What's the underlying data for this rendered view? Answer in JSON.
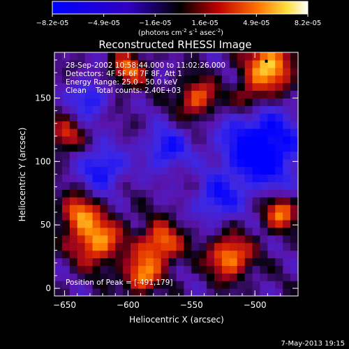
{
  "colorbar": {
    "ticks": [
      "-8.2e-05",
      "-4.9e-05",
      "-1.6e-05",
      "1.6e-05",
      "4.9e-05",
      "8.2e-05"
    ],
    "tick_values": [
      -8.2e-05,
      -4.9e-05,
      -1.6e-05,
      1.6e-05,
      4.9e-05,
      8.2e-05
    ],
    "range": [
      -8.2e-05,
      8.2e-05
    ],
    "unit_base": "(photons cm",
    "unit_exp1": "-2",
    "unit_mid": " s",
    "unit_exp2": "-1",
    "unit_mid2": " asec",
    "unit_exp3": "-2",
    "unit_end": ")"
  },
  "chart_data": {
    "type": "heatmap",
    "title": "Reconstructed RHESSI Image",
    "xlabel": "Heliocentric X (arcsec)",
    "ylabel": "Heliocentric Y (arcsec)",
    "xlim": [
      -658,
      -466
    ],
    "ylim": [
      -6,
      186
    ],
    "x_ticks": [
      -650,
      -600,
      -550,
      -500
    ],
    "y_ticks": [
      0,
      50,
      100,
      150
    ],
    "annotations": [
      "28-Sep-2002 10:58:44.000 to 11:02:26.000",
      "Detectors: 4F 5F 6F 7F 8F, Att 1",
      "Energy Range: 25.0 - 50.0 keV",
      "Clean    Total counts: 2.40E+03"
    ],
    "peak_label": "Position of Peak = [-491,179]",
    "peak": [
      -491,
      179
    ],
    "bright_sources": [
      {
        "x": -488,
        "y": 175,
        "v": 1.0,
        "r": 14
      },
      {
        "x": -600,
        "y": 172,
        "v": 0.7,
        "r": 10
      },
      {
        "x": -545,
        "y": 150,
        "v": 0.75,
        "r": 11
      },
      {
        "x": -625,
        "y": 38,
        "v": 0.9,
        "r": 14
      },
      {
        "x": -575,
        "y": 35,
        "v": 0.85,
        "r": 12
      },
      {
        "x": -520,
        "y": 25,
        "v": 0.9,
        "r": 12
      },
      {
        "x": -590,
        "y": 10,
        "v": 0.8,
        "r": 10
      },
      {
        "x": -480,
        "y": 60,
        "v": 0.8,
        "r": 10
      },
      {
        "x": -650,
        "y": 120,
        "v": 0.6,
        "r": 9
      },
      {
        "x": -505,
        "y": 150,
        "v": 0.55,
        "r": 9
      },
      {
        "x": -640,
        "y": 60,
        "v": 0.7,
        "r": 10
      }
    ],
    "dark_regions": [
      {
        "x": -495,
        "y": 110,
        "v": -1.0,
        "r": 22
      },
      {
        "x": -620,
        "y": 95,
        "v": -0.7,
        "r": 12
      },
      {
        "x": -570,
        "y": 110,
        "v": -0.65,
        "r": 12
      },
      {
        "x": -530,
        "y": 70,
        "v": -0.6,
        "r": 12
      },
      {
        "x": -630,
        "y": 150,
        "v": -0.6,
        "r": 10
      }
    ]
  },
  "footer": {
    "date": "7-May-2013 19:15"
  }
}
